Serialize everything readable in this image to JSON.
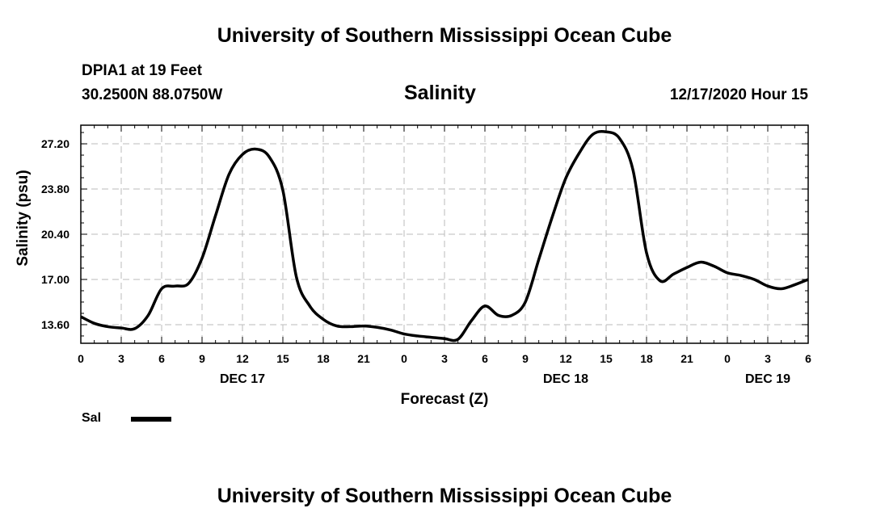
{
  "header": {
    "title_top": "University of Southern Mississippi Ocean Cube",
    "station": "DPIA1 at 19 Feet",
    "coords": "30.2500N 88.0750W",
    "variable": "Salinity",
    "datetime": "12/17/2020 Hour 15"
  },
  "footer": {
    "title_bottom": "University of Southern Mississippi Ocean Cube"
  },
  "legend": {
    "label": "Sal"
  },
  "chart_data": {
    "type": "line",
    "title": "Salinity",
    "xlabel": "Forecast (Z)",
    "ylabel": "Salinity (psu)",
    "xlim": [
      0,
      54
    ],
    "ylim": [
      12.2,
      28.6
    ],
    "yticks": [
      13.6,
      17.0,
      20.4,
      23.8,
      27.2
    ],
    "ytick_labels": [
      "13.60",
      "17.00",
      "20.40",
      "23.80",
      "27.20"
    ],
    "xticks": [
      0,
      3,
      6,
      9,
      12,
      15,
      18,
      21,
      24,
      27,
      30,
      33,
      36,
      39,
      42,
      45,
      48,
      51,
      54
    ],
    "xtick_labels": [
      "0",
      "3",
      "6",
      "9",
      "12",
      "15",
      "18",
      "21",
      "0",
      "3",
      "6",
      "9",
      "12",
      "15",
      "18",
      "21",
      "0",
      "3",
      "6"
    ],
    "date_labels": [
      {
        "x": 12,
        "label": "DEC 17"
      },
      {
        "x": 36,
        "label": "DEC 18"
      },
      {
        "x": 51,
        "label": "DEC 19"
      }
    ],
    "grid": true,
    "series": [
      {
        "name": "Sal",
        "color": "#000000",
        "x": [
          0,
          1,
          2,
          3,
          4,
          5,
          6,
          7,
          8,
          9,
          10,
          11,
          12,
          13,
          14,
          15,
          16,
          17,
          18,
          19,
          20,
          21,
          22,
          23,
          24,
          25,
          26,
          27,
          28,
          29,
          30,
          31,
          32,
          33,
          34,
          35,
          36,
          37,
          38,
          39,
          40,
          41,
          42,
          43,
          44,
          45,
          46,
          47,
          48,
          49,
          50,
          51,
          52,
          53,
          54
        ],
        "y": [
          14.2,
          13.7,
          13.45,
          13.35,
          13.3,
          14.3,
          16.3,
          16.5,
          16.7,
          18.6,
          21.8,
          24.9,
          26.4,
          26.8,
          26.2,
          23.7,
          17.2,
          15.0,
          14.0,
          13.5,
          13.45,
          13.5,
          13.4,
          13.2,
          12.9,
          12.75,
          12.65,
          12.55,
          12.5,
          13.9,
          15.0,
          14.3,
          14.3,
          15.3,
          18.5,
          21.7,
          24.6,
          26.5,
          27.9,
          28.1,
          27.6,
          25.2,
          19.0,
          16.9,
          17.4,
          17.9,
          18.3,
          18.0,
          17.5,
          17.3,
          17.0,
          16.5,
          16.3,
          16.6,
          17.0
        ]
      }
    ]
  }
}
